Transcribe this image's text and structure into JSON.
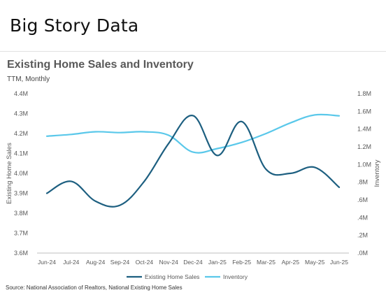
{
  "header": {
    "title": "Big Story Data"
  },
  "chart_data": {
    "type": "line",
    "title": "Existing Home Sales and Inventory",
    "subtitle": "TTM, Monthly",
    "categories": [
      "Jun-24",
      "Jul-24",
      "Aug-24",
      "Sep-24",
      "Oct-24",
      "Nov-24",
      "Dec-24",
      "Jan-25",
      "Feb-25",
      "Mar-25",
      "Apr-25",
      "May-25",
      "Jun-25"
    ],
    "ylabel": "Existing Home Sales",
    "y2label": "Inventory",
    "ylim": [
      3.6,
      4.4
    ],
    "y2lim": [
      0,
      1.8
    ],
    "yticks": [
      "3.6M",
      "3.7M",
      "3.8M",
      "3.9M",
      "4.0M",
      "4.1M",
      "4.2M",
      "4.3M",
      "4.4M"
    ],
    "y2ticks": [
      ".0M",
      ".2M",
      ".4M",
      ".6M",
      ".8M",
      "1.0M",
      "1.2M",
      "1.4M",
      "1.6M",
      "1.8M"
    ],
    "series": [
      {
        "name": "Existing Home Sales",
        "axis": "left",
        "color": "#1d5f80",
        "values": [
          3.9,
          3.96,
          3.86,
          3.84,
          3.96,
          4.15,
          4.29,
          4.09,
          4.26,
          4.02,
          4.0,
          4.03,
          3.93
        ]
      },
      {
        "name": "Inventory",
        "axis": "right",
        "color": "#5ac8ea",
        "values": [
          1.32,
          1.34,
          1.37,
          1.36,
          1.37,
          1.33,
          1.14,
          1.18,
          1.25,
          1.35,
          1.47,
          1.56,
          1.55
        ]
      }
    ],
    "legend_position": "bottom",
    "grid": false
  },
  "source": "Source: National Association of Realtors, National Existing Home Sales"
}
